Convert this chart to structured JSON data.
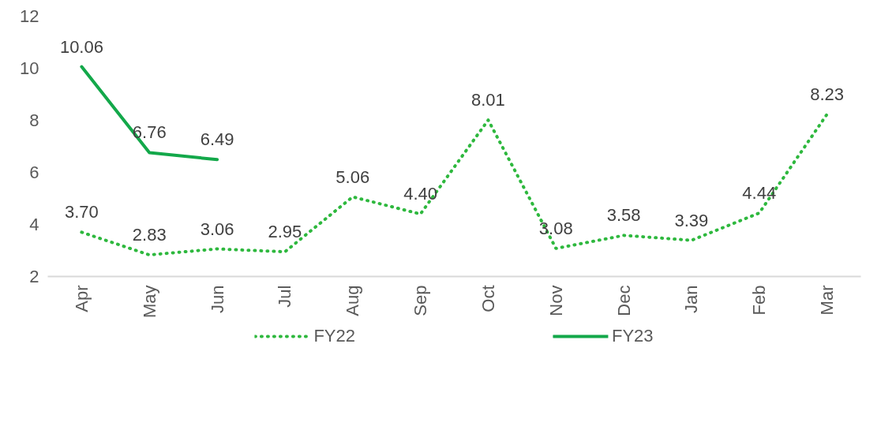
{
  "chart_data": {
    "type": "line",
    "categories": [
      "Apr",
      "May",
      "Jun",
      "Jul",
      "Aug",
      "Sep",
      "Oct",
      "Nov",
      "Dec",
      "Jan",
      "Feb",
      "Mar"
    ],
    "series": [
      {
        "name": "FY22",
        "color": "#2eb83e",
        "line_style": "dotted",
        "values": [
          3.7,
          2.83,
          3.06,
          2.95,
          5.06,
          4.4,
          8.01,
          3.08,
          3.58,
          3.39,
          4.44,
          8.23
        ],
        "value_labels": [
          "3.70",
          "2.83",
          "3.06",
          "2.95",
          "5.06",
          "4.40",
          "8.01",
          "3.08",
          "3.58",
          "3.39",
          "4.44",
          "8.23"
        ]
      },
      {
        "name": "FY23",
        "color": "#13a84a",
        "line_style": "solid",
        "values": [
          10.06,
          6.76,
          6.49,
          null,
          null,
          null,
          null,
          null,
          null,
          null,
          null,
          null
        ],
        "value_labels": [
          "10.06",
          "6.76",
          "6.49",
          null,
          null,
          null,
          null,
          null,
          null,
          null,
          null,
          null
        ]
      }
    ],
    "ylim": [
      2,
      12
    ],
    "yticks": [
      2,
      4,
      6,
      8,
      10,
      12
    ],
    "grid": false,
    "legend": "bottom",
    "marker": "none"
  }
}
